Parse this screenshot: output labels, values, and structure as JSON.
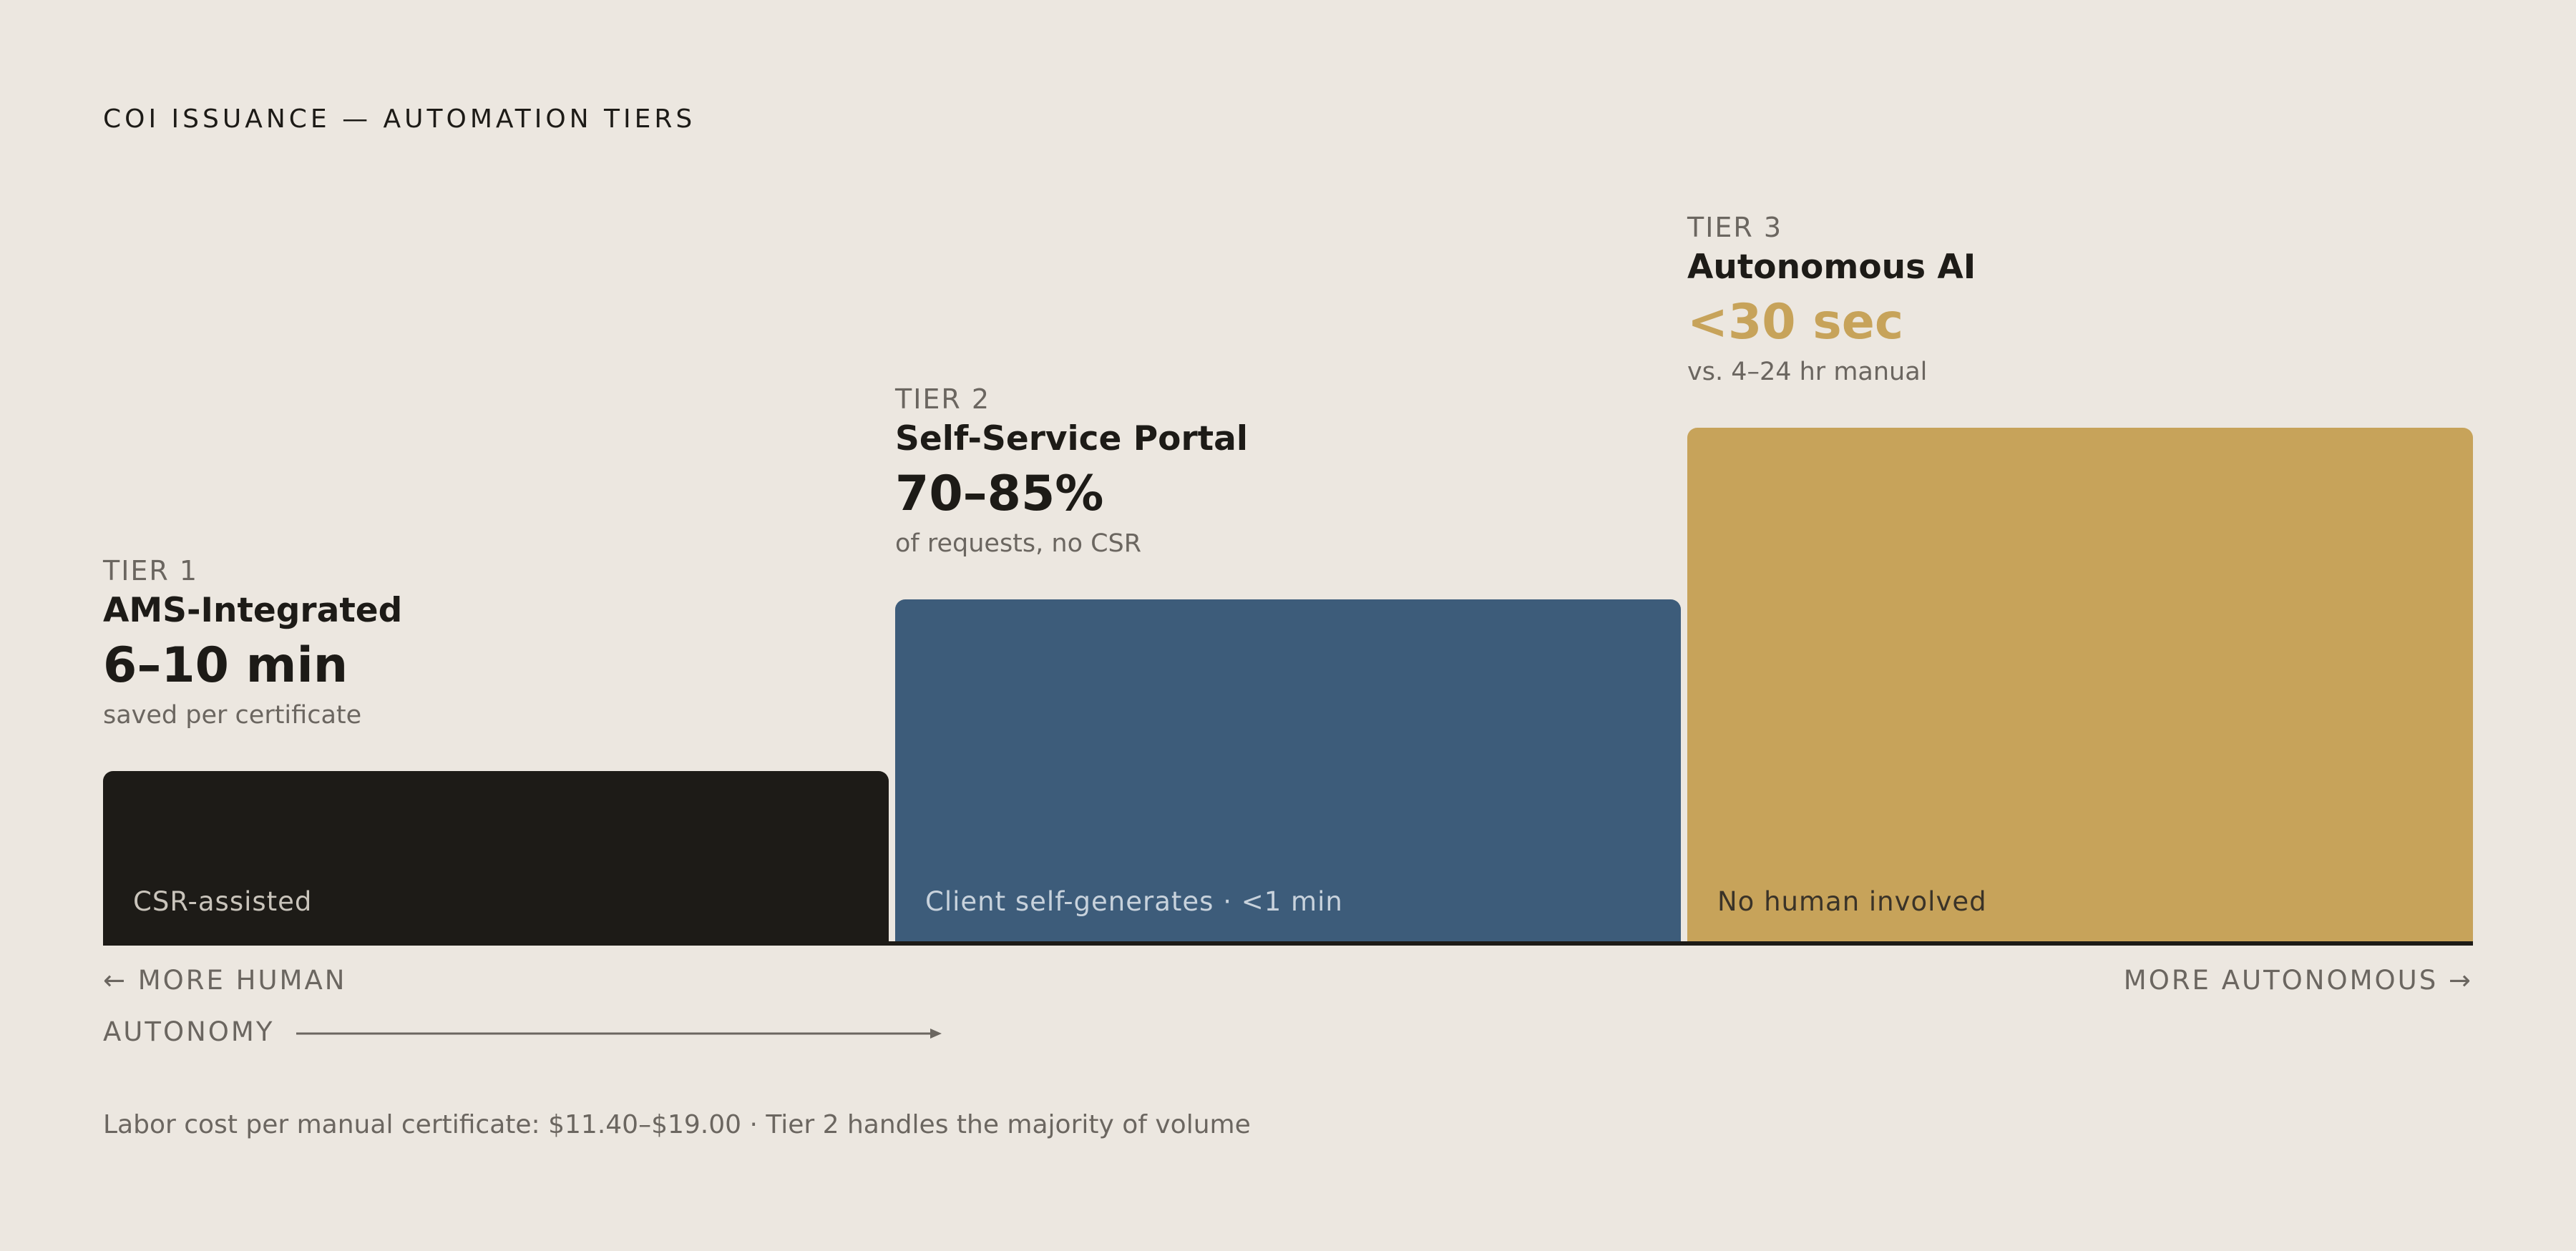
{
  "title": "COI ISSUANCE — AUTOMATION TIERS",
  "colors": {
    "background": "#ece7e0",
    "tier1_bar": "#1d1b17",
    "tier2_bar": "#3d5c7a",
    "tier3_bar": "#c7a35a",
    "muted_text": "#6b6660",
    "accent_text": "#c7a35a"
  },
  "tiers": [
    {
      "label": "TIER 1",
      "name": "AMS-Integrated",
      "metric": "6–10 min",
      "note": "saved per certificate",
      "bar_label": "CSR-assisted",
      "relative_height": 1
    },
    {
      "label": "TIER 2",
      "name": "Self-Service Portal",
      "metric": "70–85%",
      "note": "of requests, no CSR",
      "bar_label": "Client self-generates · <1 min",
      "relative_height": 2
    },
    {
      "label": "TIER 3",
      "name": "Autonomous AI",
      "metric": "<30 sec",
      "note": "vs. 4–24 hr manual",
      "bar_label": "No human involved",
      "relative_height": 3
    }
  ],
  "axis": {
    "left_label": "← MORE HUMAN",
    "right_label": "MORE AUTONOMOUS →",
    "autonomy_label": "AUTONOMY"
  },
  "footnote": "Labor cost per manual certificate: $11.40–$19.00 · Tier 2 handles the majority of volume"
}
